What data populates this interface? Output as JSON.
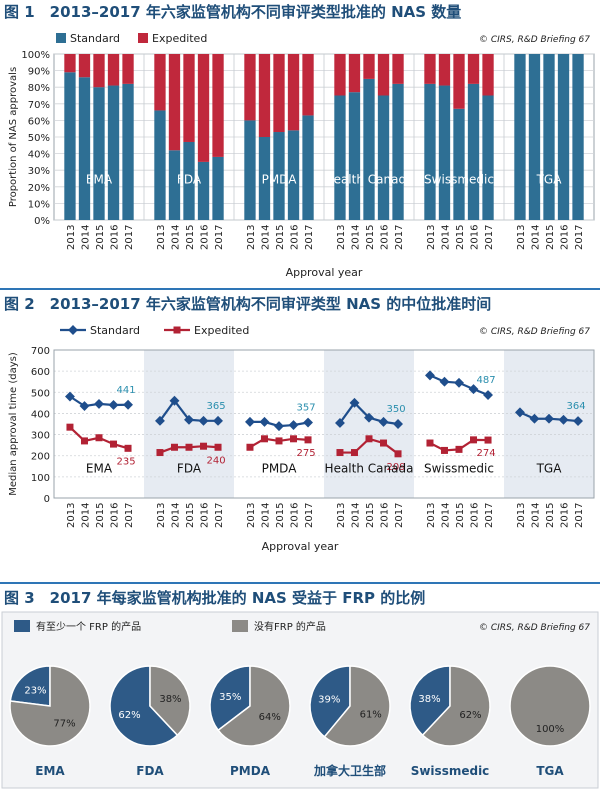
{
  "figure1": {
    "heading": "图 1　2013–2017 年六家监管机构不同审评类型批准的 NAS 数量",
    "source": "© CIRS, R&D Briefing 67",
    "chart_data": {
      "type": "bar",
      "stacked": true,
      "groups": [
        "EMA",
        "FDA",
        "PMDA",
        "Health Canada",
        "Swissmedic",
        "TGA"
      ],
      "years": [
        "2013",
        "2014",
        "2015",
        "2016",
        "2017"
      ],
      "series": [
        {
          "name": "Standard",
          "color": "#2e6f94",
          "values": [
            [
              89,
              86,
              80,
              81,
              82
            ],
            [
              66,
              42,
              47,
              35,
              38
            ],
            [
              60,
              50,
              53,
              54,
              63
            ],
            [
              75,
              77,
              85,
              75,
              82
            ],
            [
              82,
              81,
              67,
              82,
              75
            ],
            [
              100,
              100,
              100,
              100,
              100
            ]
          ]
        },
        {
          "name": "Expedited",
          "color": "#c0283c",
          "values": [
            [
              11,
              14,
              20,
              19,
              18
            ],
            [
              34,
              58,
              53,
              65,
              62
            ],
            [
              40,
              50,
              47,
              46,
              37
            ],
            [
              25,
              23,
              15,
              25,
              18
            ],
            [
              18,
              19,
              33,
              18,
              25
            ],
            [
              0,
              0,
              0,
              0,
              0
            ]
          ]
        }
      ],
      "ylabel": "Proportion of NAS approvals",
      "xlabel": "Approval year",
      "yticks": [
        "0%",
        "10%",
        "20%",
        "30%",
        "40%",
        "50%",
        "60%",
        "70%",
        "80%",
        "90%",
        "100%"
      ],
      "ylim": [
        0,
        100
      ],
      "legend_position": "top-left"
    }
  },
  "figure2": {
    "heading": "图 2　2013–2017 年六家监管机构不同审评类型 NAS 的中位批准时间",
    "source": "© CIRS, R&D Briefing 67",
    "chart_data": {
      "type": "line",
      "groups": [
        "EMA",
        "FDA",
        "PMDA",
        "Health Canada",
        "Swissmedic",
        "TGA"
      ],
      "years": [
        "2013",
        "2014",
        "2015",
        "2016",
        "2017"
      ],
      "series": [
        {
          "name": "Standard",
          "color": "#1f4e8c",
          "values": [
            [
              480,
              435,
              445,
              440,
              441
            ],
            [
              365,
              460,
              370,
              365,
              365
            ],
            [
              360,
              360,
              340,
              345,
              357
            ],
            [
              355,
              450,
              380,
              360,
              350
            ],
            [
              580,
              550,
              545,
              515,
              487
            ],
            [
              405,
              375,
              375,
              370,
              364
            ]
          ]
        },
        {
          "name": "Expedited",
          "color": "#b22234",
          "values": [
            [
              335,
              270,
              285,
              255,
              235
            ],
            [
              215,
              240,
              240,
              245,
              240
            ],
            [
              240,
              280,
              270,
              280,
              275
            ],
            [
              215,
              215,
              280,
              260,
              209
            ],
            [
              260,
              225,
              230,
              275,
              274
            ],
            [
              null,
              null,
              null,
              null,
              null
            ]
          ]
        }
      ],
      "end_labels_standard": [
        "441",
        "365",
        "357",
        "350",
        "487",
        "364"
      ],
      "end_labels_expedited": [
        "235",
        "240",
        "275",
        "209",
        "274",
        ""
      ],
      "ylabel": "Median approval time (days)",
      "xlabel": "Approval year",
      "yticks": [
        "0",
        "100",
        "200",
        "300",
        "400",
        "500",
        "600",
        "700"
      ],
      "ylim": [
        0,
        700
      ],
      "legend_position": "top-left"
    }
  },
  "figure3": {
    "heading": "图 3　2017 年每家监管机构批准的 NAS 受益于 FRP 的比例",
    "source": "© CIRS, R&D Briefing 67",
    "legend": [
      {
        "label": "有至少一个 FRP 的产品",
        "color": "#2e5a87"
      },
      {
        "label": "没有FRP 的产品",
        "color": "#8c8a86"
      }
    ],
    "chart_data": {
      "type": "pie",
      "pies": [
        {
          "name": "EMA",
          "with_frp": 23,
          "without_frp": 77,
          "label_with": "23%",
          "label_without": "77%"
        },
        {
          "name": "FDA",
          "with_frp": 62,
          "without_frp": 38,
          "label_with": "62%",
          "label_without": "38%"
        },
        {
          "name": "PMDA",
          "with_frp": 35,
          "without_frp": 64,
          "label_with": "35%",
          "label_without": "64%"
        },
        {
          "name": "加拿大卫生部",
          "with_frp": 39,
          "without_frp": 61,
          "label_with": "39%",
          "label_without": "61%"
        },
        {
          "name": "Swissmedic",
          "with_frp": 38,
          "without_frp": 62,
          "label_with": "38%",
          "label_without": "62%"
        },
        {
          "name": "TGA",
          "with_frp": 0,
          "without_frp": 100,
          "label_with": "",
          "label_without": "100%"
        }
      ]
    }
  }
}
